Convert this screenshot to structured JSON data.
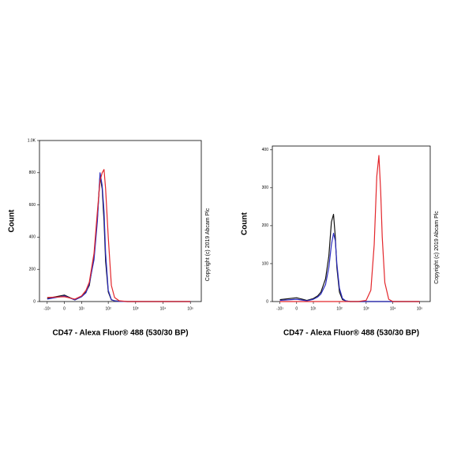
{
  "chart_data": [
    {
      "type": "line",
      "x_label": "CD47 - Alexa Fluor® 488 (530/30 BP)",
      "y_label": "Count",
      "annotation": "Copyright (c) 2019 Abcam Plc",
      "x_scale": "biexponential",
      "xlim": [
        -20,
        250000
      ],
      "xticks": [
        {
          "value": -10,
          "label": "-10¹"
        },
        0,
        {
          "value": 10,
          "label": "10¹"
        },
        {
          "value": 100,
          "label": "10²"
        },
        {
          "value": 1000,
          "label": "10³"
        },
        {
          "value": 10000,
          "label": "10⁴"
        },
        {
          "value": 100000,
          "label": "10⁵"
        }
      ],
      "ylim": [
        0,
        1000
      ],
      "yticks": [
        0,
        200,
        400,
        600,
        800,
        {
          "value": 1000,
          "label": "1.0K"
        }
      ],
      "x": [
        -10,
        0,
        5,
        10,
        15,
        20,
        30,
        40,
        50,
        60,
        70,
        80,
        100,
        130,
        170,
        250,
        500,
        1000,
        2000,
        3000,
        4000,
        6000,
        10000,
        100000
      ],
      "series": [
        {
          "color": "#111111",
          "values": [
            20,
            40,
            10,
            30,
            60,
            100,
            280,
            520,
            780,
            700,
            500,
            250,
            60,
            10,
            5,
            2,
            0,
            0,
            0,
            0,
            0,
            0,
            0,
            0
          ]
        },
        {
          "color": "#2b2bbf",
          "values": [
            15,
            35,
            10,
            30,
            55,
            110,
            260,
            500,
            800,
            720,
            560,
            300,
            70,
            12,
            4,
            1,
            0,
            0,
            0,
            0,
            0,
            0,
            0,
            0
          ]
        },
        {
          "color": "#e3262b",
          "values": [
            25,
            30,
            15,
            35,
            70,
            120,
            300,
            560,
            750,
            800,
            820,
            700,
            400,
            100,
            25,
            5,
            0,
            0,
            0,
            0,
            0,
            0,
            0,
            0
          ]
        }
      ]
    },
    {
      "type": "line",
      "x_label": "CD47 - Alexa Fluor® 488 (530/30 BP)",
      "y_label": "Count",
      "annotation": "Copyright (c) 2019 Abcam Plc",
      "x_scale": "biexponential",
      "xlim": [
        -20,
        250000
      ],
      "xticks": [
        {
          "value": -10,
          "label": "-10¹"
        },
        0,
        {
          "value": 10,
          "label": "10¹"
        },
        {
          "value": 100,
          "label": "10²"
        },
        {
          "value": 1000,
          "label": "10³"
        },
        {
          "value": 10000,
          "label": "10⁴"
        },
        {
          "value": 100000,
          "label": "10⁵"
        }
      ],
      "ylim": [
        0,
        410
      ],
      "yticks": [
        0,
        100,
        200,
        300,
        400
      ],
      "x": [
        -10,
        0,
        5,
        10,
        15,
        20,
        30,
        40,
        50,
        60,
        70,
        80,
        100,
        130,
        170,
        250,
        500,
        1000,
        1500,
        2000,
        2500,
        3000,
        3500,
        4000,
        5000,
        7000,
        10000,
        100000
      ],
      "series": [
        {
          "color": "#111111",
          "values": [
            5,
            10,
            3,
            8,
            15,
            25,
            60,
            120,
            210,
            230,
            170,
            90,
            25,
            5,
            2,
            0,
            0,
            0,
            0,
            0,
            0,
            0,
            0,
            0,
            0,
            0,
            0,
            0
          ]
        },
        {
          "color": "#2b2bbf",
          "values": [
            3,
            6,
            2,
            6,
            12,
            20,
            45,
            90,
            150,
            180,
            160,
            100,
            35,
            8,
            2,
            0,
            0,
            0,
            0,
            0,
            0,
            0,
            0,
            0,
            0,
            0,
            0,
            0
          ]
        },
        {
          "color": "#e3262b",
          "values": [
            0,
            0,
            0,
            0,
            0,
            0,
            0,
            0,
            0,
            0,
            0,
            0,
            0,
            0,
            0,
            0,
            0,
            3,
            30,
            150,
            330,
            385,
            290,
            170,
            50,
            6,
            0,
            0
          ]
        }
      ]
    }
  ]
}
